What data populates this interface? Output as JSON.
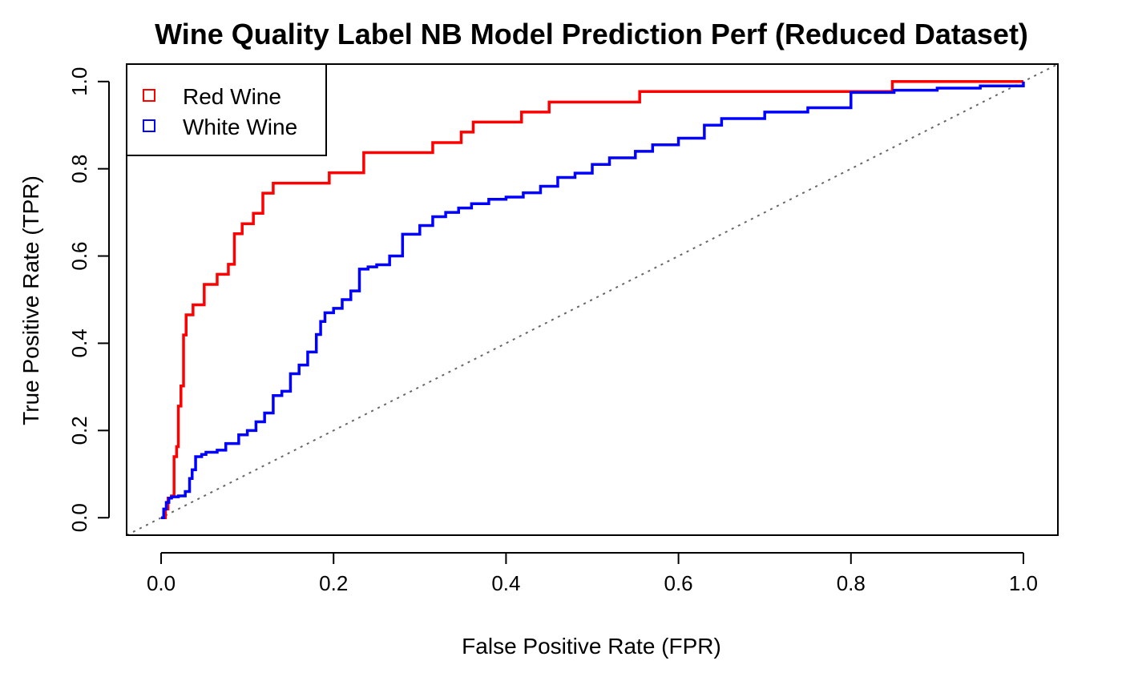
{
  "chart_data": {
    "type": "line",
    "title": "Wine Quality Label NB Model Prediction Perf (Reduced Dataset)",
    "xlabel": "False Positive Rate (FPR)",
    "ylabel": "True Positive Rate (TPR)",
    "xlim": [
      -0.04,
      1.04
    ],
    "ylim": [
      -0.04,
      1.04
    ],
    "x_ticks": [
      0.0,
      0.2,
      0.4,
      0.6,
      0.8,
      1.0
    ],
    "y_ticks": [
      0.0,
      0.2,
      0.4,
      0.6,
      0.8,
      1.0
    ],
    "x_tick_labels": [
      "0.0",
      "0.2",
      "0.4",
      "0.6",
      "0.8",
      "1.0"
    ],
    "y_tick_labels": [
      "0.0",
      "0.2",
      "0.4",
      "0.6",
      "0.8",
      "1.0"
    ],
    "grid": false,
    "legend_position": "top-left",
    "reference_line": {
      "x": [
        -0.04,
        1.04
      ],
      "y": [
        -0.04,
        1.04
      ],
      "color": "#666666",
      "style": "dotted"
    },
    "series": [
      {
        "name": "Red Wine",
        "color": "#ff0000",
        "step": true,
        "x": [
          0.0,
          0.005,
          0.008,
          0.012,
          0.015,
          0.018,
          0.02,
          0.023,
          0.026,
          0.029,
          0.032,
          0.037,
          0.05,
          0.065,
          0.078,
          0.085,
          0.094,
          0.107,
          0.118,
          0.13,
          0.195,
          0.235,
          0.315,
          0.348,
          0.362,
          0.418,
          0.45,
          0.555,
          0.848,
          1.0
        ],
        "y": [
          0.0,
          0.02,
          0.045,
          0.05,
          0.14,
          0.163,
          0.256,
          0.302,
          0.419,
          0.465,
          0.465,
          0.488,
          0.535,
          0.558,
          0.581,
          0.651,
          0.674,
          0.698,
          0.744,
          0.767,
          0.791,
          0.837,
          0.86,
          0.884,
          0.907,
          0.93,
          0.953,
          0.977,
          1.0,
          1.0
        ]
      },
      {
        "name": "White Wine",
        "color": "#0000ff",
        "step": true,
        "x": [
          0.0,
          0.003,
          0.006,
          0.009,
          0.012,
          0.02,
          0.028,
          0.033,
          0.036,
          0.04,
          0.047,
          0.052,
          0.065,
          0.075,
          0.09,
          0.1,
          0.11,
          0.12,
          0.13,
          0.14,
          0.15,
          0.16,
          0.17,
          0.18,
          0.185,
          0.19,
          0.2,
          0.21,
          0.22,
          0.23,
          0.24,
          0.25,
          0.265,
          0.28,
          0.3,
          0.315,
          0.33,
          0.345,
          0.36,
          0.38,
          0.4,
          0.42,
          0.44,
          0.46,
          0.48,
          0.5,
          0.52,
          0.55,
          0.57,
          0.6,
          0.63,
          0.65,
          0.7,
          0.75,
          0.8,
          0.85,
          0.9,
          0.95,
          1.0
        ],
        "y": [
          0.0,
          0.02,
          0.035,
          0.045,
          0.048,
          0.05,
          0.06,
          0.09,
          0.11,
          0.14,
          0.145,
          0.15,
          0.155,
          0.17,
          0.19,
          0.2,
          0.22,
          0.24,
          0.28,
          0.29,
          0.33,
          0.35,
          0.38,
          0.42,
          0.45,
          0.47,
          0.48,
          0.5,
          0.52,
          0.57,
          0.575,
          0.58,
          0.6,
          0.65,
          0.67,
          0.69,
          0.7,
          0.71,
          0.72,
          0.73,
          0.735,
          0.745,
          0.76,
          0.78,
          0.79,
          0.81,
          0.825,
          0.84,
          0.855,
          0.87,
          0.9,
          0.915,
          0.93,
          0.94,
          0.975,
          0.98,
          0.985,
          0.99,
          1.0
        ]
      }
    ]
  }
}
